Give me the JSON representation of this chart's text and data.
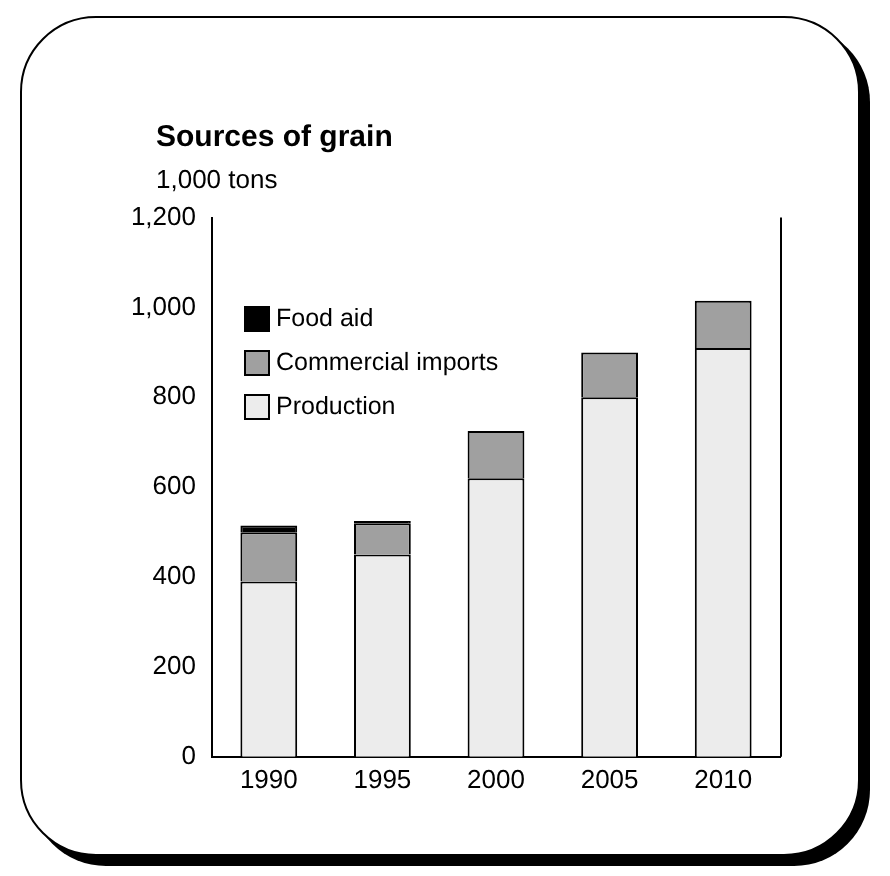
{
  "chart_data": {
    "type": "bar",
    "title": "Sources of grain",
    "subtitle": "1,000 tons",
    "categories": [
      "1990",
      "1995",
      "2000",
      "2005",
      "2010"
    ],
    "stacked": true,
    "series": [
      {
        "name": "Production",
        "color": "#ececec",
        "values": [
          390,
          450,
          620,
          800,
          910
        ]
      },
      {
        "name": "Commercial imports",
        "color": "#a0a0a0",
        "values": [
          110,
          70,
          105,
          100,
          105
        ]
      },
      {
        "name": "Food aid",
        "color": "#000000",
        "values": [
          15,
          5,
          null,
          null,
          null
        ]
      }
    ],
    "ylim": [
      0,
      1200
    ],
    "yticks": [
      {
        "value": 0,
        "label": "0"
      },
      {
        "value": 200,
        "label": "200"
      },
      {
        "value": 400,
        "label": "400"
      },
      {
        "value": 600,
        "label": "600"
      },
      {
        "value": 800,
        "label": "800"
      },
      {
        "value": 1000,
        "label": "1,000"
      },
      {
        "value": 1200,
        "label": "1,200"
      }
    ],
    "grid": false,
    "legend": "top left"
  }
}
